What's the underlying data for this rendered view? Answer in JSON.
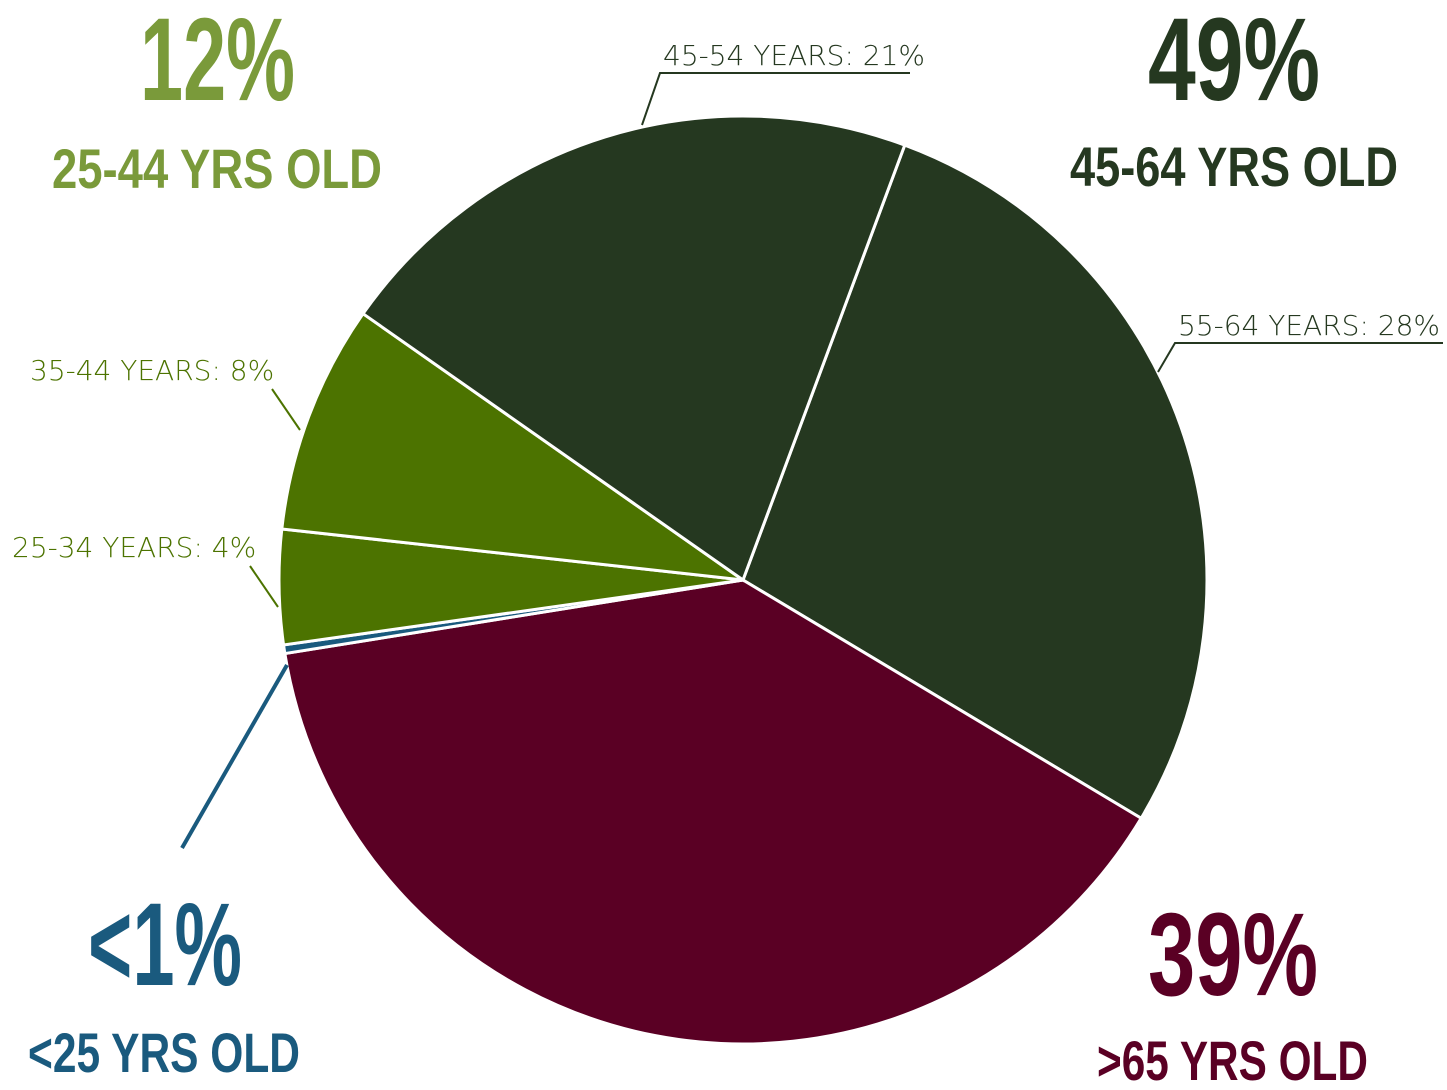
{
  "chart_data": {
    "type": "pie",
    "values": [
      28,
      39,
      0.3,
      4,
      8,
      21
    ],
    "value_labels": [
      "55-64 YEARS: 28%",
      null,
      null,
      "25-34 YEARS: 4%",
      "35-44 YEARS: 8%",
      "45-54 YEARS: 21%"
    ],
    "colors": [
      "#253820",
      "#5a0024",
      "#1a5a7e",
      "#4c7300",
      "#4c7300",
      "#253820"
    ],
    "groups": [
      {
        "name": "25-44 YRS OLD",
        "value": 12,
        "value_label": "12%",
        "color": "#7a9a3a"
      },
      {
        "name": "45-64 YRS OLD",
        "value": 49,
        "value_label": "49%",
        "color": "#253820"
      },
      {
        "name": ">65 YRS OLD",
        "value": 39,
        "value_label": "39%",
        "color": "#5a0024"
      },
      {
        "name": "<25 YRS OLD",
        "value": 0.3,
        "value_label": "<1%",
        "color": "#1a5a7e"
      }
    ]
  }
}
